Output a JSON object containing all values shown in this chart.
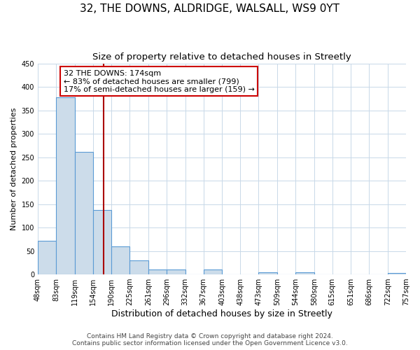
{
  "title": "32, THE DOWNS, ALDRIDGE, WALSALL, WS9 0YT",
  "subtitle": "Size of property relative to detached houses in Streetly",
  "xlabel": "Distribution of detached houses by size in Streetly",
  "ylabel": "Number of detached properties",
  "bar_edges": [
    48,
    83,
    119,
    154,
    190,
    225,
    261,
    296,
    332,
    367,
    403,
    438,
    473,
    509,
    544,
    580,
    615,
    651,
    686,
    722,
    757
  ],
  "bar_heights": [
    72,
    378,
    262,
    137,
    60,
    30,
    10,
    10,
    0,
    10,
    0,
    0,
    5,
    0,
    5,
    0,
    0,
    0,
    0,
    3
  ],
  "bar_color": "#ccdcea",
  "bar_edge_color": "#5b9bd5",
  "vline_x": 174,
  "vline_color": "#aa0000",
  "annotation_line1": "32 THE DOWNS: 174sqm",
  "annotation_line2": "← 83% of detached houses are smaller (799)",
  "annotation_line3": "17% of semi-detached houses are larger (159) →",
  "ylim": [
    0,
    450
  ],
  "yticks": [
    0,
    50,
    100,
    150,
    200,
    250,
    300,
    350,
    400,
    450
  ],
  "tick_labels": [
    "48sqm",
    "83sqm",
    "119sqm",
    "154sqm",
    "190sqm",
    "225sqm",
    "261sqm",
    "296sqm",
    "332sqm",
    "367sqm",
    "403sqm",
    "438sqm",
    "473sqm",
    "509sqm",
    "544sqm",
    "580sqm",
    "615sqm",
    "651sqm",
    "686sqm",
    "722sqm",
    "757sqm"
  ],
  "background_color": "#ffffff",
  "grid_color": "#c8d8e8",
  "footer_line1": "Contains HM Land Registry data © Crown copyright and database right 2024.",
  "footer_line2": "Contains public sector information licensed under the Open Government Licence v3.0.",
  "title_fontsize": 11,
  "subtitle_fontsize": 9.5,
  "xlabel_fontsize": 9,
  "ylabel_fontsize": 8,
  "tick_fontsize": 7,
  "footer_fontsize": 6.5,
  "annot_fontsize": 8
}
